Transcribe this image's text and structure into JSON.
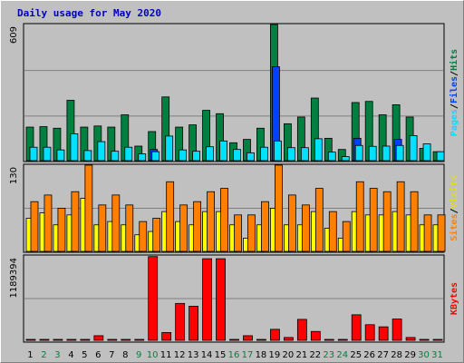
{
  "title": "Daily usage for May 2020",
  "legend_hits": {
    "pages": "Pages",
    "files": "Files",
    "hits": "Hits",
    "sep": "/"
  },
  "legend_visits": {
    "sites": "Sites",
    "visits": "Visits",
    "sep": "/"
  },
  "legend_kbytes": {
    "kbytes": "KBytes"
  },
  "max_labels": {
    "hits": "609",
    "visits": "130",
    "kbytes": "1189394"
  },
  "colors": {
    "hits": "#008040",
    "files": "#0040ff",
    "pages": "#00e0ff",
    "visits": "#ff8000",
    "sites": "#ffff00",
    "kbytes": "#ff0000",
    "background": "#c0c0c0",
    "title": "#0000c0",
    "weekday_label": "#000000",
    "weekend_label": "#008040"
  },
  "chart_data": {
    "type": "bar",
    "categories": [
      "1",
      "2",
      "3",
      "4",
      "5",
      "6",
      "7",
      "8",
      "9",
      "10",
      "11",
      "12",
      "13",
      "14",
      "15",
      "16",
      "17",
      "18",
      "19",
      "20",
      "21",
      "22",
      "23",
      "24",
      "25",
      "26",
      "27",
      "28",
      "29",
      "30",
      "31"
    ],
    "weekend_days": [
      "2",
      "3",
      "9",
      "10",
      "16",
      "17",
      "23",
      "24",
      "30",
      "31"
    ],
    "panels": [
      {
        "name": "hits-files-pages",
        "ylim": [
          0,
          609
        ],
        "series": [
          {
            "name": "Hits",
            "values": [
              150,
              152,
              145,
              270,
              150,
              155,
              150,
              205,
              65,
              130,
              285,
              150,
              160,
              225,
              210,
              80,
              95,
              145,
              609,
              165,
              195,
              280,
              100,
              50,
              260,
              265,
              205,
              250,
              195,
              55,
              40
            ]
          },
          {
            "name": "Files",
            "values": [
              0,
              0,
              0,
              0,
              0,
              0,
              0,
              0,
              0,
              50,
              0,
              0,
              0,
              0,
              0,
              0,
              0,
              0,
              420,
              0,
              0,
              0,
              0,
              0,
              100,
              0,
              0,
              95,
              0,
              0,
              0
            ]
          },
          {
            "name": "Pages",
            "values": [
              60,
              60,
              48,
              120,
              45,
              85,
              42,
              60,
              30,
              40,
              110,
              48,
              42,
              62,
              88,
              50,
              35,
              60,
              88,
              58,
              58,
              98,
              38,
              18,
              68,
              64,
              65,
              68,
              112,
              75,
              40
            ]
          }
        ]
      },
      {
        "name": "visits-sites",
        "ylim": [
          0,
          130
        ],
        "series": [
          {
            "name": "Visits",
            "values": [
              75,
              85,
              65,
              90,
              130,
              70,
              85,
              70,
              45,
              50,
              105,
              70,
              75,
              90,
              95,
              55,
              55,
              75,
              130,
              85,
              70,
              95,
              60,
              45,
              105,
              95,
              90,
              105,
              90,
              55,
              55
            ]
          },
          {
            "name": "Sites",
            "values": [
              50,
              58,
              40,
              55,
              80,
              40,
              45,
              40,
              25,
              30,
              60,
              45,
              40,
              60,
              60,
              40,
              20,
              40,
              65,
              40,
              40,
              60,
              35,
              20,
              60,
              55,
              55,
              60,
              55,
              40,
              40
            ]
          }
        ]
      },
      {
        "name": "kbytes",
        "ylim": [
          0,
          1189394
        ],
        "series": [
          {
            "name": "KBytes",
            "values": [
              12000,
              12000,
              12000,
              12000,
              12000,
              65000,
              12000,
              12000,
              12000,
              1180000,
              110000,
              520000,
              480000,
              1150000,
              1150000,
              12000,
              65000,
              12000,
              155000,
              40000,
              295000,
              125000,
              12000,
              12000,
              360000,
              220000,
              190000,
              300000,
              40000,
              12000,
              12000
            ]
          }
        ]
      }
    ]
  }
}
